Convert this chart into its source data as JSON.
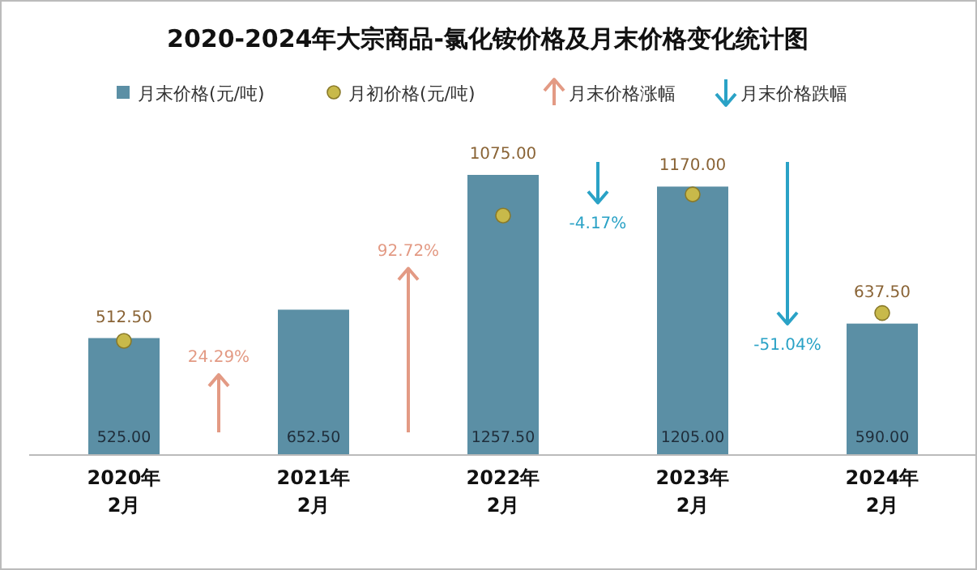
{
  "chart_data": {
    "type": "bar",
    "title": "2020-2024年大宗商品-氯化铵价格及月末价格变化统计图",
    "categories": [
      "2020年2月",
      "2021年2月",
      "2022年2月",
      "2023年2月",
      "2024年2月"
    ],
    "legend": "top",
    "series": [
      {
        "name": "月末价格(元/吨)",
        "color": "#5b8fa5",
        "values": [
          525,
          652.5,
          1257.5,
          1205,
          590
        ],
        "value_labels": [
          "525.00",
          "652.50",
          "1257.50",
          "1205.00",
          "590.00"
        ]
      },
      {
        "name": "月初价格(元/吨)",
        "type": "scatter",
        "marker": "circle",
        "color": "#c8b94a",
        "values": [
          512.5,
          null,
          1075,
          1170,
          637.5
        ],
        "value_labels": [
          "512.50",
          null,
          "1075.00",
          "1170.00",
          "637.50"
        ]
      }
    ],
    "annotations": [
      "月末价格涨幅",
      "月末价格跌幅",
      "24.29%",
      "92.72%",
      "-4.17%",
      "-51.04%"
    ]
  }
}
